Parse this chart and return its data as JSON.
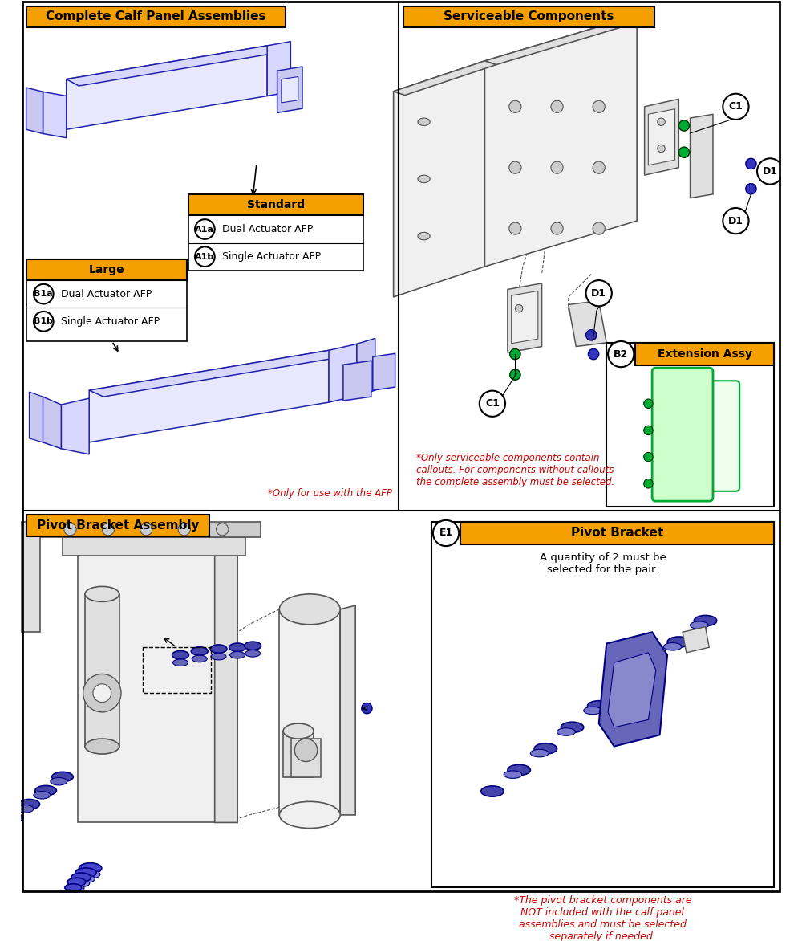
{
  "bg_color": "#ffffff",
  "orange": "#F5A000",
  "blue_line": "#2222AA",
  "blue_fill": "#E8E8FF",
  "blue_fill2": "#D8D8FF",
  "blue_fill3": "#C8C8F0",
  "gray_line": "#555555",
  "gray_fill": "#F0F0F0",
  "gray_fill2": "#E0E0E0",
  "gray_fill3": "#CCCCCC",
  "green": "#00AA33",
  "blue_screw": "#3333BB",
  "navy": "#000080",
  "red": "#CC0000",
  "black": "#000000",
  "white": "#ffffff",
  "panel1_title": "Complete Calf Panel Assemblies",
  "panel2_title": "Serviceable Components",
  "panel3_title": "Pivot Bracket Assembly",
  "standard": "Standard",
  "large": "Large",
  "A1a": "A1a",
  "A1b": "A1b",
  "B1a": "B1a",
  "B1b": "B1b",
  "B2": "B2",
  "C1": "C1",
  "D1": "D1",
  "E1": "E1",
  "dual": "Dual Actuator AFP",
  "single": "Single Actuator AFP",
  "ext_assy": "Extension Assy",
  "pivot_bracket": "Pivot Bracket",
  "note1": "*Only for use with the AFP",
  "note2": "*Only serviceable components contain\ncallouts. For components without callouts\nthe complete assembly must be selected.",
  "note3": "A quantity of 2 must be\nselected for the pair.",
  "note4": "*The pivot bracket components are\nNOT included with the calf panel\nassemblies and must be selected\nseparately if needed."
}
